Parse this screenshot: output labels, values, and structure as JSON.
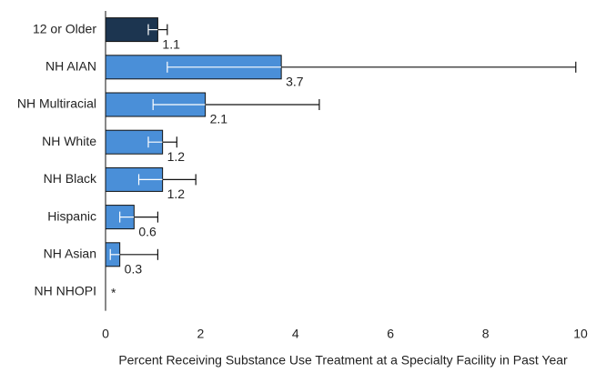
{
  "chart_data": {
    "type": "hbar",
    "categories": [
      "12 or Older",
      "NH AIAN",
      "NH Multiracial",
      "NH White",
      "NH Black",
      "Hispanic",
      "NH Asian",
      "NH NHOPI"
    ],
    "values": [
      1.1,
      3.7,
      2.1,
      1.2,
      1.2,
      0.6,
      0.3,
      null
    ],
    "value_labels": [
      "1.1",
      "3.7",
      "2.1",
      "1.2",
      "1.2",
      "0.6",
      "0.3",
      "*"
    ],
    "error_low": [
      0.9,
      1.3,
      1.0,
      0.9,
      0.7,
      0.3,
      0.1,
      null
    ],
    "error_high": [
      1.3,
      9.9,
      4.5,
      1.5,
      1.9,
      1.1,
      1.1,
      null
    ],
    "colors": [
      "#1c3550",
      "#4a8fd8",
      "#4a8fd8",
      "#4a8fd8",
      "#4a8fd8",
      "#4a8fd8",
      "#4a8fd8",
      "#4a8fd8"
    ],
    "xlim": [
      0,
      10
    ],
    "xticks": [
      0,
      2,
      4,
      6,
      8,
      10
    ],
    "x_label": "Percent Receiving Substance Use Treatment at a Specialty Facility in Past Year"
  }
}
